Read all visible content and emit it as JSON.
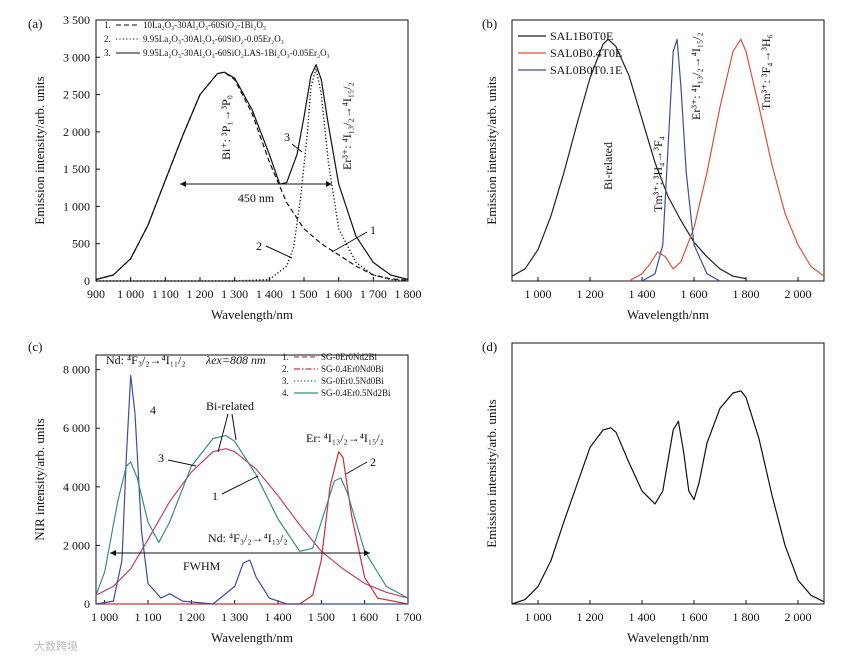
{
  "watermark": "大数跨境",
  "chart_data": [
    {
      "panel": "(a)",
      "type": "line",
      "xlabel": "Wavelength/nm",
      "ylabel": "Emission intensity/arb. units",
      "xlim": [
        900,
        1800
      ],
      "ylim": [
        0,
        3500
      ],
      "xticks": [
        900,
        1000,
        1100,
        1200,
        1300,
        1400,
        1500,
        1600,
        1700,
        1800
      ],
      "xtick_labels": [
        "900",
        "1 000",
        "1 100",
        "1 200",
        "1 300",
        "1 400",
        "1 500",
        "1 600",
        "1 700",
        "1 800"
      ],
      "yticks": [
        0,
        500,
        1000,
        1500,
        2000,
        2500,
        3000,
        3500
      ],
      "ytick_labels": [
        "0",
        "500",
        "1 000",
        "1 500",
        "2 000",
        "2 500",
        "3 000",
        "3 500"
      ],
      "legend": [
        {
          "num": "1.",
          "label": "10La₂O₃-30Al₂O₃-60SiO₂-1Bi₂O₃",
          "style": "dashed"
        },
        {
          "num": "2.",
          "label": "9.95La₂O₃-30Al₂O₃-60SiO₂-0.05Er₂O₃",
          "style": "dotted"
        },
        {
          "num": "3.",
          "label": "9.95La₂O₃-30Al₂O₃-60SiO₂LAS-1Bi₂O₃-0.05Er₂O₃",
          "style": "solid"
        }
      ],
      "series": [
        {
          "name": "1",
          "style": "dashed",
          "x": [
            900,
            950,
            1000,
            1050,
            1100,
            1150,
            1200,
            1250,
            1270,
            1300,
            1350,
            1400,
            1450,
            1500,
            1550,
            1600,
            1650,
            1700,
            1750,
            1800
          ],
          "y": [
            20,
            80,
            300,
            750,
            1350,
            1950,
            2500,
            2780,
            2800,
            2700,
            2250,
            1600,
            1050,
            700,
            500,
            350,
            200,
            80,
            30,
            10
          ]
        },
        {
          "name": "2",
          "style": "dotted",
          "x": [
            900,
            1300,
            1400,
            1450,
            1470,
            1490,
            1510,
            1520,
            1535,
            1550,
            1570,
            1600,
            1650,
            1700,
            1750,
            1800
          ],
          "y": [
            0,
            0,
            20,
            200,
            450,
            1100,
            2000,
            2600,
            2850,
            2500,
            1600,
            700,
            250,
            80,
            20,
            0
          ]
        },
        {
          "name": "3",
          "style": "solid",
          "x": [
            900,
            950,
            1000,
            1050,
            1100,
            1150,
            1200,
            1250,
            1270,
            1300,
            1350,
            1400,
            1430,
            1450,
            1480,
            1500,
            1520,
            1535,
            1550,
            1570,
            1600,
            1650,
            1700,
            1750,
            1800
          ],
          "y": [
            20,
            80,
            300,
            750,
            1350,
            1950,
            2500,
            2780,
            2800,
            2720,
            2300,
            1700,
            1300,
            1320,
            1700,
            2200,
            2750,
            2900,
            2700,
            2100,
            1300,
            600,
            250,
            80,
            20
          ]
        }
      ],
      "annotations": {
        "bi_label": "Bi⁺: ³P₁→³P₀",
        "er_label": "Er³⁺: ⁴I₁₃/₂→⁴I₁₅/₂",
        "fwhm": "450 nm",
        "curve1": "1",
        "curve2": "2",
        "curve3": "3"
      }
    },
    {
      "panel": "(b)",
      "type": "line",
      "xlabel": "Wavelength/nm",
      "ylabel": "Emission intensity/arb. units",
      "xlim": [
        900,
        2100
      ],
      "xticks": [
        1000,
        1200,
        1400,
        1600,
        1800,
        2000
      ],
      "xtick_labels": [
        "1 000",
        "1 200",
        "1 400",
        "1 600",
        "1 800",
        "2 000"
      ],
      "legend": [
        {
          "label": "SAL1B0T0E",
          "color": "#222222"
        },
        {
          "label": "SAL0B0.4T0E",
          "color": "#e0503a"
        },
        {
          "label": "SAL0B0T0.1E",
          "color": "#3b4fa0"
        }
      ],
      "series": [
        {
          "name": "SAL1B0T0E",
          "color": "#222222",
          "x": [
            900,
            950,
            1000,
            1050,
            1100,
            1150,
            1200,
            1250,
            1270,
            1300,
            1350,
            1400,
            1450,
            1500,
            1550,
            1600,
            1650,
            1700,
            1750,
            1800
          ],
          "y": [
            0.02,
            0.05,
            0.13,
            0.27,
            0.45,
            0.65,
            0.84,
            0.98,
            1.0,
            0.97,
            0.85,
            0.67,
            0.49,
            0.35,
            0.25,
            0.16,
            0.1,
            0.05,
            0.02,
            0.01
          ]
        },
        {
          "name": "SAL0B0.4T0E",
          "color": "#e0503a",
          "x": [
            1350,
            1400,
            1430,
            1460,
            1490,
            1520,
            1550,
            1600,
            1650,
            1700,
            1750,
            1780,
            1800,
            1850,
            1900,
            1950,
            2000,
            2050,
            2100
          ],
          "y": [
            0.0,
            0.03,
            0.07,
            0.12,
            0.1,
            0.05,
            0.08,
            0.22,
            0.45,
            0.72,
            0.95,
            1.0,
            0.95,
            0.72,
            0.48,
            0.28,
            0.15,
            0.06,
            0.02
          ]
        },
        {
          "name": "SAL0B0T0.1E",
          "color": "#3b4fa0",
          "x": [
            1400,
            1450,
            1480,
            1500,
            1520,
            1535,
            1550,
            1570,
            1600,
            1650,
            1700
          ],
          "y": [
            0.0,
            0.03,
            0.15,
            0.55,
            0.95,
            1.0,
            0.8,
            0.45,
            0.15,
            0.03,
            0.0
          ]
        }
      ],
      "annotations": {
        "bi": "Bi-related",
        "tm1": "Tm³⁺: ³H₄→³F₄",
        "er": "Er³⁺: ⁴I₁₃/₂→⁴I₁₅/₂",
        "tm2": "Tm³⁺: ³F₄→³H₆"
      }
    },
    {
      "panel": "(c)",
      "type": "line",
      "xlabel": "Wavelength/nm",
      "ylabel": "NIR intensity/arb. units",
      "xlim": [
        980,
        1700
      ],
      "ylim": [
        0,
        8500
      ],
      "xticks": [
        1000,
        1100,
        1200,
        1300,
        1400,
        1500,
        1600,
        1700
      ],
      "xtick_labels": [
        "1 000",
        "1 100",
        "1 200",
        "1 300",
        "1 400",
        "1 500",
        "1 600",
        "1 700"
      ],
      "yticks": [
        0,
        2000,
        4000,
        6000,
        8000
      ],
      "ytick_labels": [
        "0",
        "2 000",
        "4 000",
        "6 000",
        "8 000"
      ],
      "legend": [
        {
          "num": "1.",
          "label": "SG-0Er0Nd2Bi",
          "color": "#c2406b",
          "style": "dashed"
        },
        {
          "num": "2.",
          "label": "SG-0.4Er0Nd0Bi",
          "color": "#d03030",
          "style": "dashdot"
        },
        {
          "num": "3.",
          "label": "SG-0Er0.5Nd0Bi",
          "color": "#3b4fa0",
          "style": "dotted"
        },
        {
          "num": "4.",
          "label": "SG-0.4Er0.5Nd2Bi",
          "color": "#3a8a8a",
          "style": "solid"
        }
      ],
      "series": [
        {
          "name": "SG-0Er0Nd2Bi",
          "color": "#c2406b",
          "x": [
            980,
            1020,
            1060,
            1100,
            1150,
            1200,
            1250,
            1280,
            1300,
            1350,
            1400,
            1450,
            1500,
            1550,
            1600,
            1650,
            1700
          ],
          "y": [
            300,
            600,
            1200,
            2200,
            3500,
            4500,
            5200,
            5300,
            5200,
            4600,
            3700,
            2700,
            1800,
            1200,
            700,
            400,
            200
          ]
        },
        {
          "name": "SG-0.4Er0Nd0Bi",
          "color": "#d03030",
          "x": [
            980,
            1450,
            1480,
            1500,
            1520,
            1540,
            1550,
            1570,
            1600,
            1630,
            1700
          ],
          "y": [
            0,
            0,
            300,
            1500,
            4000,
            5200,
            5000,
            3000,
            900,
            200,
            0
          ]
        },
        {
          "name": "SG-0Er0.5Nd0Bi",
          "color": "#3b4fa0",
          "x": [
            980,
            1020,
            1040,
            1050,
            1060,
            1070,
            1085,
            1100,
            1130,
            1150,
            1180,
            1250,
            1300,
            1320,
            1335,
            1350,
            1380,
            1420,
            1700
          ],
          "y": [
            0,
            100,
            1500,
            5000,
            7800,
            6500,
            2500,
            700,
            200,
            350,
            100,
            0,
            600,
            1400,
            1500,
            900,
            200,
            0,
            0
          ]
        },
        {
          "name": "SG-0.4Er0.5Nd2Bi",
          "color": "#3a8a8a",
          "x": [
            980,
            1000,
            1030,
            1050,
            1060,
            1075,
            1100,
            1125,
            1150,
            1200,
            1250,
            1280,
            1300,
            1350,
            1400,
            1450,
            1480,
            1500,
            1530,
            1545,
            1560,
            1600,
            1650,
            1700
          ],
          "y": [
            300,
            1100,
            3500,
            4700,
            4850,
            4300,
            2800,
            2100,
            2800,
            4700,
            5650,
            5750,
            5550,
            4400,
            2900,
            1800,
            1900,
            2800,
            4200,
            4300,
            3800,
            1800,
            600,
            200
          ]
        }
      ],
      "annotations": {
        "nd_title": "Nd: ⁴F₃/₂→⁴I₁₁/₂",
        "lambda": "λex=808 nm",
        "bi_related": "Bi-related",
        "er": "Er: ⁴I₁₃/₂→⁴I₁₅/₂",
        "nd2": "Nd: ⁴F₃/₂→⁴I₁₃/₂",
        "fwhm": "FWHM",
        "c1": "1",
        "c2": "2",
        "c3": "3",
        "c4": "4"
      }
    },
    {
      "panel": "(d)",
      "type": "line",
      "xlabel": "Wavelength/nm",
      "ylabel": "Emission intensity/arb. units",
      "xlim": [
        900,
        2100
      ],
      "xticks": [
        1000,
        1200,
        1400,
        1600,
        1800,
        2000
      ],
      "xtick_labels": [
        "1 000",
        "1 200",
        "1 400",
        "1 600",
        "1 800",
        "2 000"
      ],
      "series": [
        {
          "name": "combined",
          "color": "#111111",
          "x": [
            900,
            950,
            1000,
            1050,
            1100,
            1150,
            1200,
            1250,
            1280,
            1300,
            1350,
            1400,
            1450,
            1480,
            1500,
            1520,
            1540,
            1560,
            1580,
            1600,
            1620,
            1650,
            1700,
            1750,
            1780,
            1800,
            1850,
            1900,
            1950,
            2000,
            2050,
            2100
          ],
          "y": [
            0.0,
            0.02,
            0.08,
            0.2,
            0.38,
            0.55,
            0.72,
            0.8,
            0.81,
            0.79,
            0.65,
            0.52,
            0.46,
            0.52,
            0.66,
            0.8,
            0.84,
            0.7,
            0.52,
            0.48,
            0.56,
            0.74,
            0.9,
            0.97,
            0.98,
            0.95,
            0.76,
            0.5,
            0.27,
            0.11,
            0.04,
            0.01
          ]
        }
      ]
    }
  ]
}
